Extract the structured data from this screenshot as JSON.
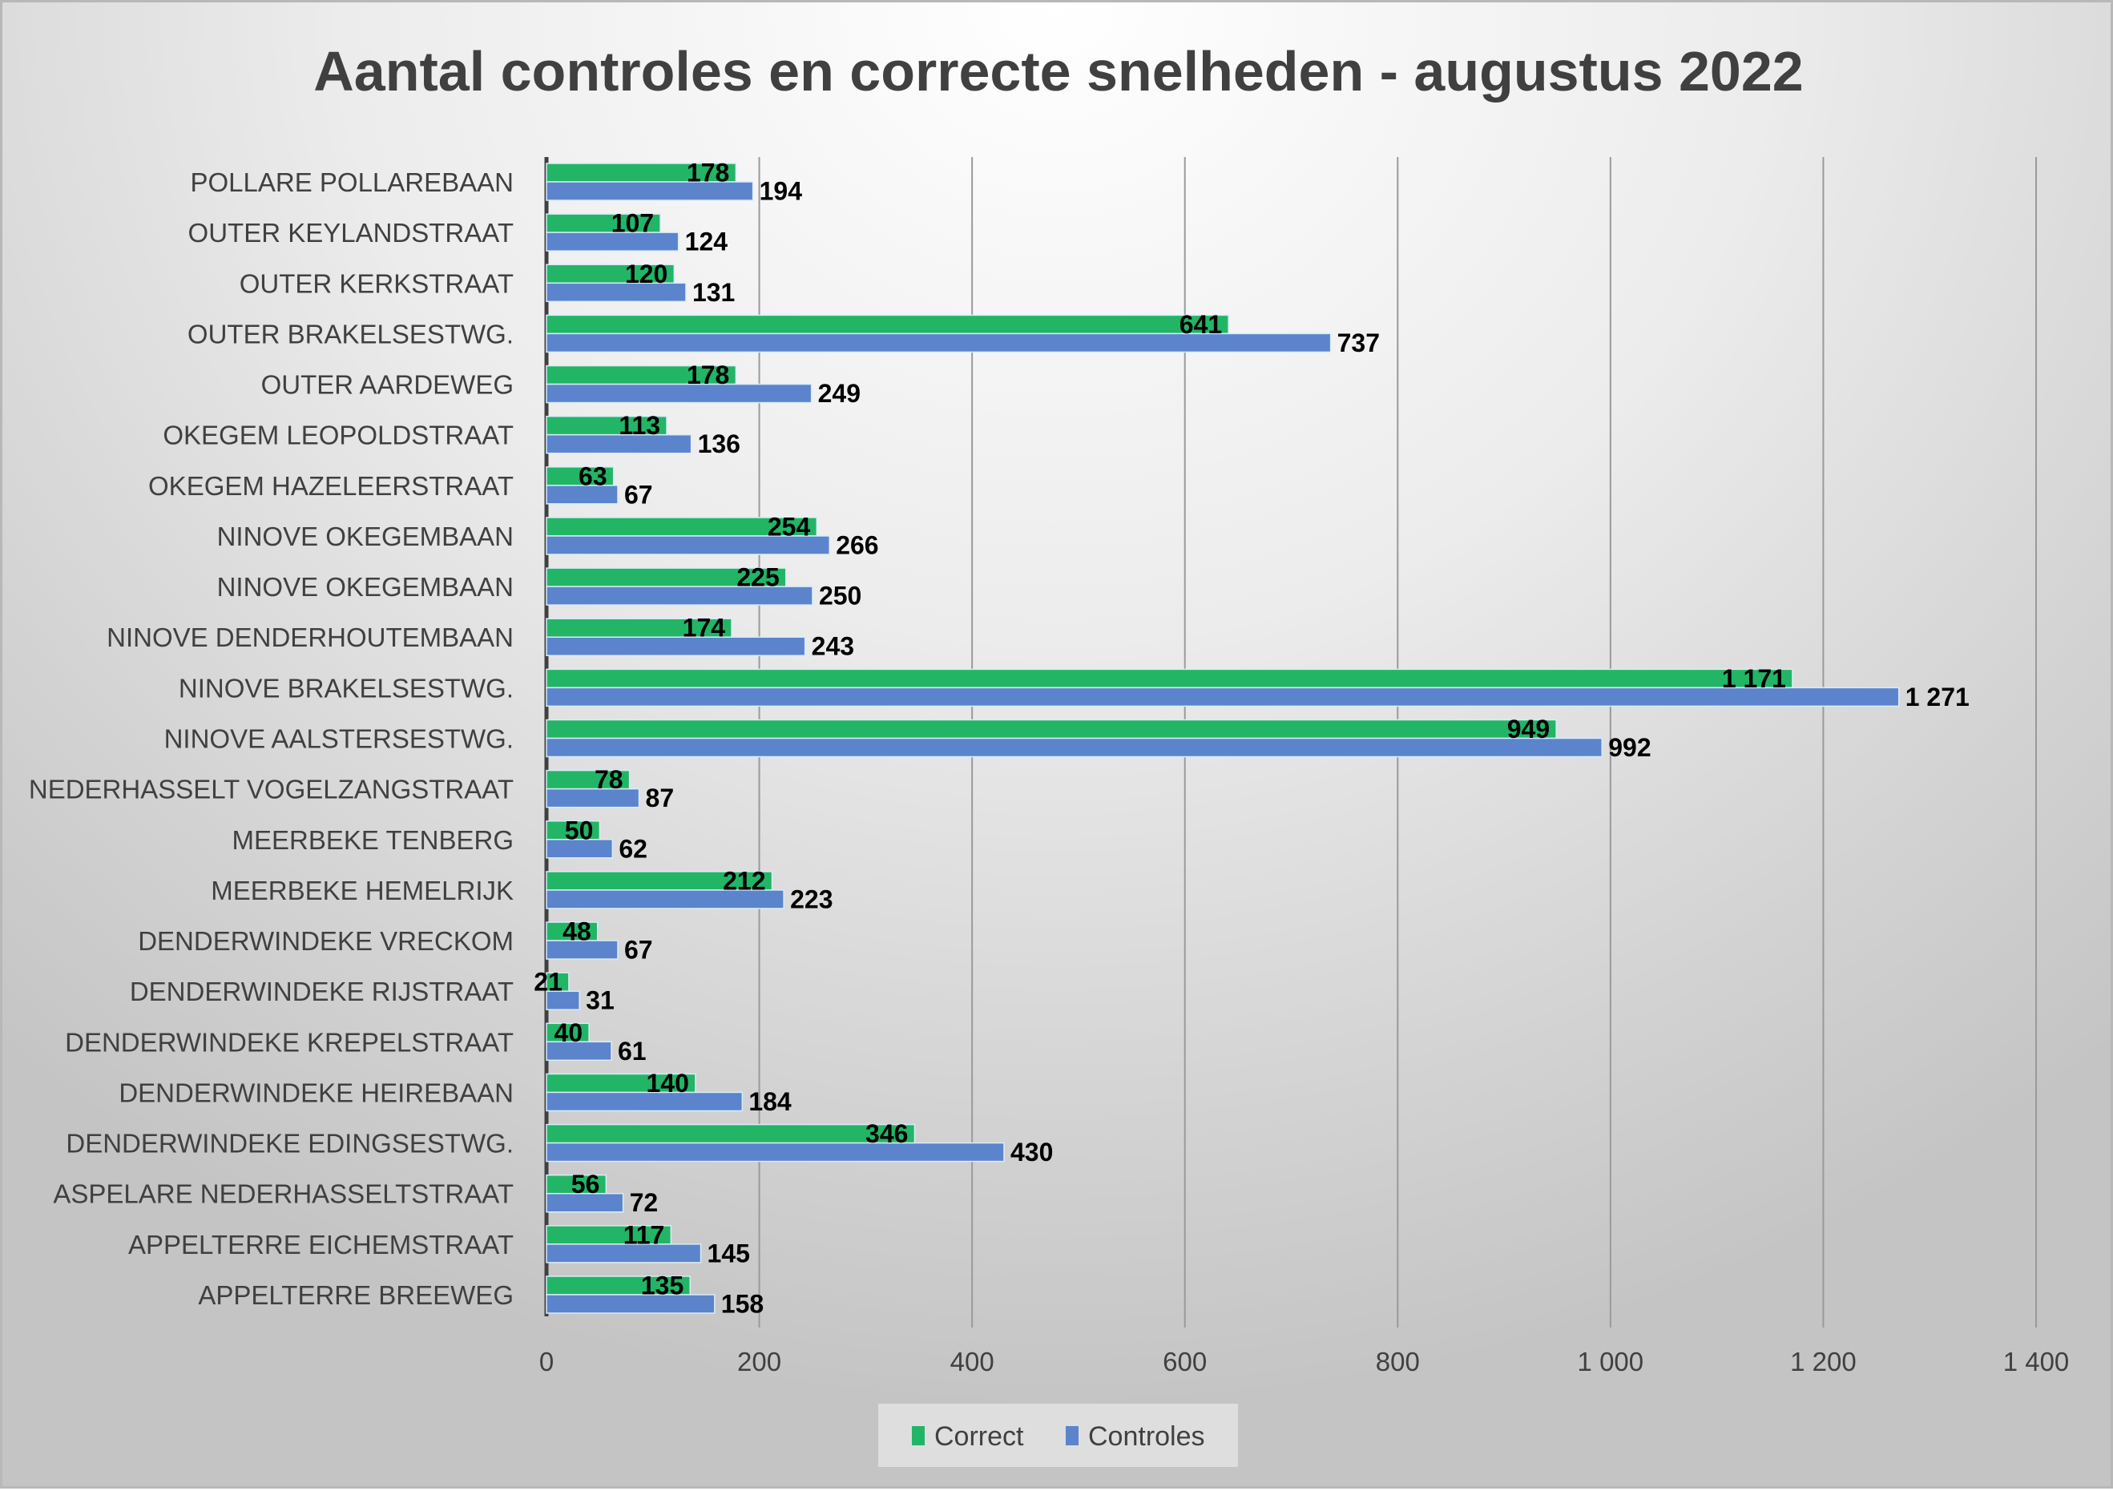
{
  "chart_data": {
    "type": "bar",
    "orientation": "horizontal",
    "title": "Aantal controles en correcte snelheden - augustus 2022",
    "xlabel": "",
    "ylabel": "",
    "xlim": [
      0,
      1400
    ],
    "xticks": [
      0,
      200,
      400,
      600,
      800,
      1000,
      1200,
      1400
    ],
    "xtick_labels": [
      "0",
      "200",
      "400",
      "600",
      "800",
      "1 000",
      "1 200",
      "1 400"
    ],
    "grid": true,
    "legend_position": "bottom",
    "categories": [
      "POLLARE POLLAREBAAN",
      "OUTER KEYLANDSTRAAT",
      "OUTER KERKSTRAAT",
      "OUTER BRAKELSESTWG.",
      "OUTER AARDEWEG",
      "OKEGEM LEOPOLDSTRAAT",
      "OKEGEM HAZELEERSTRAAT",
      "NINOVE OKEGEMBAAN",
      "NINOVE OKEGEMBAAN",
      "NINOVE DENDERHOUTEMBAAN",
      "NINOVE BRAKELSESTWG.",
      "NINOVE AALSTERSESTWG.",
      "NEDERHASSELT VOGELZANGSTRAAT",
      "MEERBEKE TENBERG",
      "MEERBEKE HEMELRIJK",
      "DENDERWINDEKE VRECKOM",
      "DENDERWINDEKE RIJSTRAAT",
      "DENDERWINDEKE KREPELSTRAAT",
      "DENDERWINDEKE HEIREBAAN",
      "DENDERWINDEKE EDINGSESTWG.",
      "ASPELARE NEDERHASSELTSTRAAT",
      "APPELTERRE EICHEMSTRAAT",
      "APPELTERRE BREEWEG"
    ],
    "series": [
      {
        "name": "Correct",
        "color": "#22b566",
        "values": [
          178,
          107,
          120,
          641,
          178,
          113,
          63,
          254,
          225,
          174,
          1171,
          949,
          78,
          50,
          212,
          48,
          21,
          40,
          140,
          346,
          56,
          117,
          135
        ]
      },
      {
        "name": "Controles",
        "color": "#5b84cc",
        "values": [
          194,
          124,
          131,
          737,
          249,
          136,
          67,
          266,
          250,
          243,
          1271,
          992,
          87,
          62,
          223,
          67,
          31,
          61,
          184,
          430,
          72,
          145,
          158
        ]
      }
    ]
  }
}
